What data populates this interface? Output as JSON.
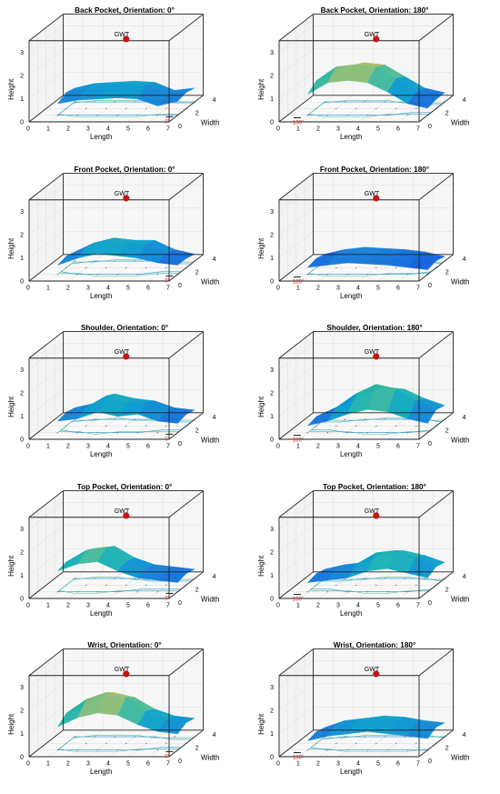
{
  "chart_data": [
    {
      "type": "surface3d",
      "title": "Back Pocket, Orientation: 0°",
      "xlabel": "Length",
      "ylabel": "Width",
      "zlabel": "Height",
      "xlim": [
        0,
        7
      ],
      "ylim": [
        0,
        4
      ],
      "zlim": [
        0,
        3.5
      ],
      "x_ticks": [
        "0",
        "1",
        "2",
        "3",
        "4",
        "5",
        "6",
        "7"
      ],
      "y_ticks": [
        "0",
        "2",
        "4"
      ],
      "z_ticks": [
        "0",
        "1",
        "2",
        "3"
      ],
      "marker": {
        "label": "GWT",
        "x": 4,
        "y": 2,
        "z": 3.0,
        "color": "#d01010"
      },
      "ref_label": "0°",
      "surface_x": [
        1,
        2,
        3,
        4,
        5,
        6,
        7
      ],
      "surface_y": [
        1,
        2,
        3
      ],
      "heights": [
        [
          0.5,
          0.65,
          0.7,
          0.75,
          0.7,
          0.4,
          0.6
        ],
        [
          0.7,
          0.85,
          1.0,
          1.05,
          1.0,
          0.6,
          0.7
        ],
        [
          0.6,
          0.8,
          0.85,
          0.9,
          0.85,
          0.5,
          0.6
        ]
      ]
    },
    {
      "type": "surface3d",
      "title": "Back Pocket, Orientation: 180°",
      "xlabel": "Length",
      "ylabel": "Width",
      "zlabel": "Height",
      "xlim": [
        0,
        7
      ],
      "ylim": [
        0,
        4
      ],
      "zlim": [
        0,
        3.5
      ],
      "x_ticks": [
        "0",
        "1",
        "2",
        "3",
        "4",
        "5",
        "6",
        "7"
      ],
      "y_ticks": [
        "0",
        "2",
        "4"
      ],
      "z_ticks": [
        "0",
        "1",
        "2",
        "3"
      ],
      "marker": {
        "label": "GWT",
        "x": 4,
        "y": 2,
        "z": 3.0,
        "color": "#d01010"
      },
      "ref_label": "180°",
      "surface_x": [
        1,
        2,
        3,
        4,
        5,
        6,
        7
      ],
      "surface_y": [
        1,
        2,
        3
      ],
      "heights": [
        [
          0.9,
          1.4,
          1.5,
          1.4,
          1.0,
          0.5,
          0.3
        ],
        [
          1.2,
          1.8,
          1.9,
          1.8,
          1.3,
          0.7,
          0.4
        ],
        [
          1.0,
          1.5,
          1.7,
          1.6,
          1.1,
          0.6,
          0.4
        ]
      ]
    },
    {
      "type": "surface3d",
      "title": "Front Pocket, Orientation: 0°",
      "xlabel": "Length",
      "ylabel": "Width",
      "zlabel": "Height",
      "xlim": [
        0,
        7
      ],
      "ylim": [
        0,
        4
      ],
      "zlim": [
        0,
        3.5
      ],
      "x_ticks": [
        "0",
        "1",
        "2",
        "3",
        "4",
        "5",
        "6",
        "7"
      ],
      "y_ticks": [
        "0",
        "2",
        "4"
      ],
      "z_ticks": [
        "0",
        "1",
        "2",
        "3"
      ],
      "marker": {
        "label": "GWT",
        "x": 4,
        "y": 2,
        "z": 3.0,
        "color": "#d01010"
      },
      "ref_label": "0°",
      "surface_x": [
        1,
        2,
        3,
        4,
        5,
        6,
        7
      ],
      "surface_y": [
        1,
        2,
        3
      ],
      "heights": [
        [
          0.4,
          0.7,
          0.9,
          0.8,
          0.7,
          0.5,
          0.4
        ],
        [
          0.5,
          0.9,
          1.2,
          1.0,
          1.0,
          0.6,
          0.4
        ],
        [
          0.4,
          0.8,
          1.0,
          0.9,
          0.9,
          0.5,
          0.3
        ]
      ]
    },
    {
      "type": "surface3d",
      "title": "Front Pocket, Orientation: 180°",
      "xlabel": "Length",
      "ylabel": "Width",
      "zlabel": "Height",
      "xlim": [
        0,
        7
      ],
      "ylim": [
        0,
        4
      ],
      "zlim": [
        0,
        3.5
      ],
      "x_ticks": [
        "0",
        "1",
        "2",
        "3",
        "4",
        "5",
        "6",
        "7"
      ],
      "y_ticks": [
        "0",
        "2",
        "4"
      ],
      "z_ticks": [
        "0",
        "1",
        "2",
        "3"
      ],
      "marker": {
        "label": "GWT",
        "x": 4,
        "y": 2,
        "z": 3.0,
        "color": "#d01010"
      },
      "ref_label": "180°",
      "surface_x": [
        1,
        2,
        3,
        4,
        5,
        6,
        7
      ],
      "surface_y": [
        1,
        2,
        3
      ],
      "heights": [
        [
          0.3,
          0.4,
          0.5,
          0.45,
          0.4,
          0.3,
          0.2
        ],
        [
          0.4,
          0.6,
          0.7,
          0.6,
          0.55,
          0.5,
          0.3
        ],
        [
          0.3,
          0.5,
          0.6,
          0.55,
          0.5,
          0.4,
          0.2
        ]
      ]
    },
    {
      "type": "surface3d",
      "title": "Shoulder, Orientation: 0°",
      "xlabel": "Length",
      "ylabel": "Width",
      "zlabel": "Height",
      "xlim": [
        0,
        7
      ],
      "ylim": [
        0,
        4
      ],
      "zlim": [
        0,
        3.5
      ],
      "x_ticks": [
        "0",
        "1",
        "2",
        "3",
        "4",
        "5",
        "6",
        "7"
      ],
      "y_ticks": [
        "0",
        "2",
        "4"
      ],
      "z_ticks": [
        "0",
        "1",
        "2",
        "3"
      ],
      "marker": {
        "label": "GWT",
        "x": 4,
        "y": 2,
        "z": 3.0,
        "color": "#d01010"
      },
      "ref_label": "0°",
      "surface_x": [
        1,
        2,
        3,
        4,
        5,
        6,
        7
      ],
      "surface_y": [
        1,
        2,
        3
      ],
      "heights": [
        [
          0.5,
          0.6,
          0.9,
          0.7,
          0.8,
          0.5,
          0.4
        ],
        [
          0.6,
          0.8,
          1.3,
          1.0,
          1.0,
          0.6,
          0.5
        ],
        [
          0.5,
          0.7,
          1.1,
          0.9,
          0.8,
          0.5,
          0.4
        ]
      ]
    },
    {
      "type": "surface3d",
      "title": "Shoulder, Orientation: 180°",
      "xlabel": "Length",
      "ylabel": "Width",
      "zlabel": "Height",
      "xlim": [
        0,
        7
      ],
      "ylim": [
        0,
        4
      ],
      "zlim": [
        0,
        3.5
      ],
      "x_ticks": [
        "0",
        "1",
        "2",
        "3",
        "4",
        "5",
        "6",
        "7"
      ],
      "y_ticks": [
        "0",
        "2",
        "4"
      ],
      "z_ticks": [
        "0",
        "1",
        "2",
        "3"
      ],
      "marker": {
        "label": "GWT",
        "x": 4,
        "y": 2,
        "z": 3.0,
        "color": "#d01010"
      },
      "ref_label": "180°",
      "surface_x": [
        1,
        2,
        3,
        4,
        5,
        6,
        7
      ],
      "surface_y": [
        1,
        2,
        3
      ],
      "heights": [
        [
          0.3,
          0.5,
          0.8,
          1.0,
          0.9,
          0.6,
          0.4
        ],
        [
          0.4,
          0.8,
          1.4,
          1.8,
          1.6,
          1.1,
          0.7
        ],
        [
          0.3,
          0.6,
          1.1,
          1.4,
          1.3,
          0.9,
          0.6
        ]
      ]
    },
    {
      "type": "surface3d",
      "title": "Top Pocket, Orientation: 0°",
      "xlabel": "Length",
      "ylabel": "Width",
      "zlabel": "Height",
      "xlim": [
        0,
        7
      ],
      "ylim": [
        0,
        4
      ],
      "zlim": [
        0,
        3.5
      ],
      "x_ticks": [
        "0",
        "1",
        "2",
        "3",
        "4",
        "5",
        "6",
        "7"
      ],
      "y_ticks": [
        "0",
        "2",
        "4"
      ],
      "z_ticks": [
        "0",
        "1",
        "2",
        "3"
      ],
      "marker": {
        "label": "GWT",
        "x": 4,
        "y": 2,
        "z": 3.0,
        "color": "#d01010"
      },
      "ref_label": "0°",
      "surface_x": [
        1,
        2,
        3,
        4,
        5,
        6,
        7
      ],
      "surface_y": [
        1,
        2,
        3
      ],
      "heights": [
        [
          0.9,
          1.2,
          1.3,
          0.9,
          0.6,
          0.5,
          0.4
        ],
        [
          1.0,
          1.5,
          1.6,
          1.0,
          0.7,
          0.6,
          0.5
        ],
        [
          0.9,
          1.3,
          1.4,
          0.9,
          0.6,
          0.5,
          0.4
        ]
      ]
    },
    {
      "type": "surface3d",
      "title": "Top Pocket, Orientation: 180°",
      "xlabel": "Length",
      "ylabel": "Width",
      "zlabel": "Height",
      "xlim": [
        0,
        7
      ],
      "ylim": [
        0,
        4
      ],
      "zlim": [
        0,
        3.5
      ],
      "x_ticks": [
        "0",
        "1",
        "2",
        "3",
        "4",
        "5",
        "6",
        "7"
      ],
      "y_ticks": [
        "0",
        "2",
        "4"
      ],
      "z_ticks": [
        "0",
        "1",
        "2",
        "3"
      ],
      "marker": {
        "label": "GWT",
        "x": 4,
        "y": 2,
        "z": 3.0,
        "color": "#d01010"
      },
      "ref_label": "180°",
      "surface_x": [
        1,
        2,
        3,
        4,
        5,
        6,
        7
      ],
      "surface_y": [
        1,
        2,
        3
      ],
      "heights": [
        [
          0.4,
          0.5,
          0.6,
          0.9,
          1.0,
          0.8,
          0.6
        ],
        [
          0.5,
          0.7,
          0.9,
          1.4,
          1.5,
          1.2,
          0.8
        ],
        [
          0.4,
          0.6,
          0.7,
          1.1,
          1.2,
          1.0,
          0.7
        ]
      ]
    },
    {
      "type": "surface3d",
      "title": "Wrist, Orientation: 0°",
      "xlabel": "Length",
      "ylabel": "Width",
      "zlabel": "Height",
      "xlim": [
        0,
        7
      ],
      "ylim": [
        0,
        4
      ],
      "zlim": [
        0,
        3.5
      ],
      "x_ticks": [
        "0",
        "1",
        "2",
        "3",
        "4",
        "5",
        "6",
        "7"
      ],
      "y_ticks": [
        "0",
        "2",
        "4"
      ],
      "z_ticks": [
        "0",
        "1",
        "2",
        "3"
      ],
      "marker": {
        "label": "GWT",
        "x": 4,
        "y": 2,
        "z": 3.0,
        "color": "#d01010"
      },
      "ref_label": "0°",
      "surface_x": [
        1,
        2,
        3,
        4,
        5,
        6,
        7
      ],
      "surface_y": [
        1,
        2,
        3
      ],
      "heights": [
        [
          1.0,
          1.4,
          1.6,
          1.5,
          1.1,
          0.8,
          0.7
        ],
        [
          1.3,
          1.9,
          2.2,
          2.0,
          1.4,
          1.0,
          0.9
        ],
        [
          1.1,
          1.6,
          1.9,
          1.7,
          1.2,
          0.9,
          0.8
        ]
      ]
    },
    {
      "type": "surface3d",
      "title": "Wrist, Orientation: 180°",
      "xlabel": "Length",
      "ylabel": "Width",
      "zlabel": "Height",
      "xlim": [
        0,
        7
      ],
      "ylim": [
        0,
        4
      ],
      "zlim": [
        0,
        3.5
      ],
      "x_ticks": [
        "0",
        "1",
        "2",
        "3",
        "4",
        "5",
        "6",
        "7"
      ],
      "y_ticks": [
        "0",
        "2",
        "4"
      ],
      "z_ticks": [
        "0",
        "1",
        "2",
        "3"
      ],
      "marker": {
        "label": "GWT",
        "x": 4,
        "y": 2,
        "z": 3.0,
        "color": "#d01010"
      },
      "ref_label": "180°",
      "surface_x": [
        1,
        2,
        3,
        4,
        5,
        6,
        7
      ],
      "surface_y": [
        1,
        2,
        3
      ],
      "heights": [
        [
          0.4,
          0.6,
          0.7,
          0.8,
          0.7,
          0.6,
          0.5
        ],
        [
          0.5,
          0.8,
          1.0,
          1.1,
          1.0,
          0.9,
          0.7
        ],
        [
          0.4,
          0.7,
          0.8,
          0.9,
          0.85,
          0.7,
          0.6
        ]
      ]
    }
  ]
}
